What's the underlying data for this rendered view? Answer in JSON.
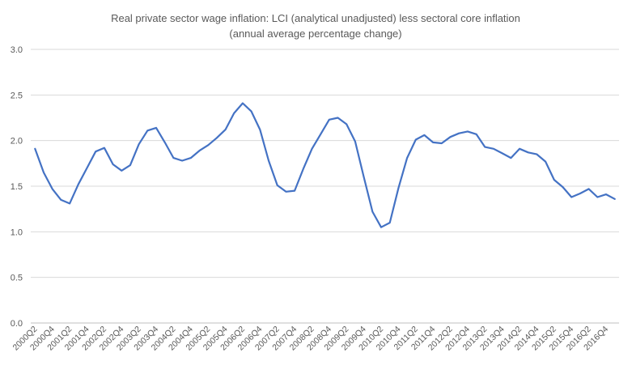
{
  "chart_data": {
    "type": "line",
    "title": "Real private sector wage inflation:  LCI (analytical unadjusted) less sectoral core inflation",
    "subtitle": "(annual average percentage change)",
    "xlabel": "",
    "ylabel": "",
    "ylim": [
      0,
      3
    ],
    "yticks": [
      "0.0",
      "0.5",
      "1.0",
      "1.5",
      "2.0",
      "2.5",
      "3.0"
    ],
    "grid": "horizontal",
    "legend": "none",
    "line_color": "#4472C4",
    "grid_color": "#d9d9d9",
    "categories": [
      "2000Q2",
      "2000Q3",
      "2000Q4",
      "2001Q1",
      "2001Q2",
      "2001Q3",
      "2001Q4",
      "2002Q1",
      "2002Q2",
      "2002Q3",
      "2002Q4",
      "2003Q1",
      "2003Q2",
      "2003Q3",
      "2003Q4",
      "2004Q1",
      "2004Q2",
      "2004Q3",
      "2004Q4",
      "2005Q1",
      "2005Q2",
      "2005Q3",
      "2005Q4",
      "2006Q1",
      "2006Q2",
      "2006Q3",
      "2006Q4",
      "2007Q1",
      "2007Q2",
      "2007Q3",
      "2007Q4",
      "2008Q1",
      "2008Q2",
      "2008Q3",
      "2008Q4",
      "2009Q1",
      "2009Q2",
      "2009Q3",
      "2009Q4",
      "2010Q1",
      "2010Q2",
      "2010Q3",
      "2010Q4",
      "2011Q1",
      "2011Q2",
      "2011Q3",
      "2011Q4",
      "2012Q1",
      "2012Q2",
      "2012Q3",
      "2012Q4",
      "2013Q1",
      "2013Q2",
      "2013Q3",
      "2013Q4",
      "2014Q1",
      "2014Q2",
      "2014Q3",
      "2014Q4",
      "2015Q1",
      "2015Q2",
      "2015Q3",
      "2015Q4",
      "2016Q1",
      "2016Q2",
      "2016Q3",
      "2016Q4",
      "2017Q1"
    ],
    "tick_labels": [
      "2000Q2",
      "2000Q4",
      "2001Q2",
      "2001Q4",
      "2002Q2",
      "2002Q4",
      "2003Q2",
      "2003Q4",
      "2004Q2",
      "2004Q4",
      "2005Q2",
      "2005Q4",
      "2006Q2",
      "2006Q4",
      "2007Q2",
      "2007Q4",
      "2008Q2",
      "2008Q4",
      "2009Q2",
      "2009Q4",
      "2010Q2",
      "2010Q4",
      "2011Q2",
      "2011Q4",
      "2012Q2",
      "2012Q4",
      "2013Q2",
      "2013Q4",
      "2014Q2",
      "2014Q4",
      "2015Q2",
      "2015Q4",
      "2016Q2",
      "2016Q4"
    ],
    "series": [
      {
        "name": "Real private sector wage inflation",
        "values": [
          1.91,
          1.65,
          1.47,
          1.35,
          1.31,
          1.52,
          1.7,
          1.88,
          1.92,
          1.74,
          1.67,
          1.73,
          1.96,
          2.11,
          2.14,
          1.98,
          1.81,
          1.78,
          1.81,
          1.89,
          1.95,
          2.03,
          2.12,
          2.3,
          2.41,
          2.32,
          2.12,
          1.78,
          1.51,
          1.44,
          1.45,
          1.69,
          1.91,
          2.07,
          2.23,
          2.25,
          2.18,
          1.99,
          1.6,
          1.22,
          1.05,
          1.1,
          1.48,
          1.81,
          2.01,
          2.06,
          1.98,
          1.97,
          2.04,
          2.08,
          2.1,
          2.07,
          1.93,
          1.91,
          1.86,
          1.81,
          1.91,
          1.87,
          1.85,
          1.77,
          1.57,
          1.49,
          1.38,
          1.42,
          1.47,
          1.38,
          1.41,
          1.36
        ]
      }
    ]
  }
}
